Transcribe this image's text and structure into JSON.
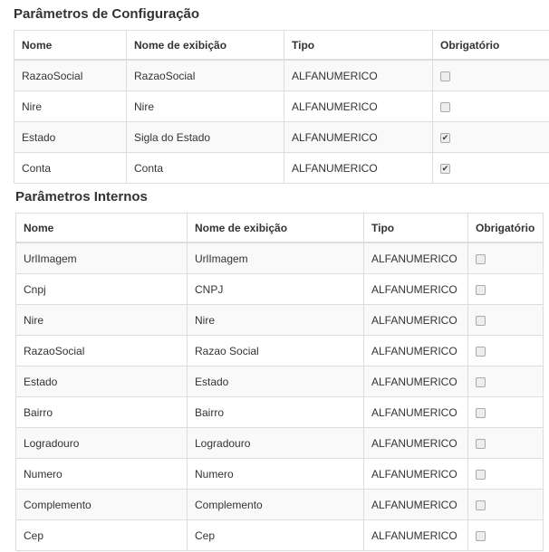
{
  "config": {
    "title": "Parâmetros de Configuração",
    "headers": [
      "Nome",
      "Nome de exibição",
      "Tipo",
      "Obrigatório"
    ],
    "rows": [
      {
        "nome": "RazaoSocial",
        "exibicao": "RazaoSocial",
        "tipo": "ALFANUMERICO",
        "obrigatorio": false
      },
      {
        "nome": "Nire",
        "exibicao": "Nire",
        "tipo": "ALFANUMERICO",
        "obrigatorio": false
      },
      {
        "nome": "Estado",
        "exibicao": "Sigla do Estado",
        "tipo": "ALFANUMERICO",
        "obrigatorio": true
      },
      {
        "nome": "Conta",
        "exibicao": "Conta",
        "tipo": "ALFANUMERICO",
        "obrigatorio": true
      }
    ]
  },
  "internos": {
    "title": "Parâmetros Internos",
    "headers": [
      "Nome",
      "Nome de exibição",
      "Tipo",
      "Obrigatório"
    ],
    "rows": [
      {
        "nome": "UrlImagem",
        "exibicao": "UrlImagem",
        "tipo": "ALFANUMERICO",
        "obrigatorio": false
      },
      {
        "nome": "Cnpj",
        "exibicao": "CNPJ",
        "tipo": "ALFANUMERICO",
        "obrigatorio": false
      },
      {
        "nome": "Nire",
        "exibicao": "Nire",
        "tipo": "ALFANUMERICO",
        "obrigatorio": false
      },
      {
        "nome": "RazaoSocial",
        "exibicao": "Razao Social",
        "tipo": "ALFANUMERICO",
        "obrigatorio": false
      },
      {
        "nome": "Estado",
        "exibicao": "Estado",
        "tipo": "ALFANUMERICO",
        "obrigatorio": false
      },
      {
        "nome": "Bairro",
        "exibicao": "Bairro",
        "tipo": "ALFANUMERICO",
        "obrigatorio": false
      },
      {
        "nome": "Logradouro",
        "exibicao": "Logradouro",
        "tipo": "ALFANUMERICO",
        "obrigatorio": false
      },
      {
        "nome": "Numero",
        "exibicao": "Numero",
        "tipo": "ALFANUMERICO",
        "obrigatorio": false
      },
      {
        "nome": "Complemento",
        "exibicao": "Complemento",
        "tipo": "ALFANUMERICO",
        "obrigatorio": false
      },
      {
        "nome": "Cep",
        "exibicao": "Cep",
        "tipo": "ALFANUMERICO",
        "obrigatorio": false
      }
    ]
  }
}
